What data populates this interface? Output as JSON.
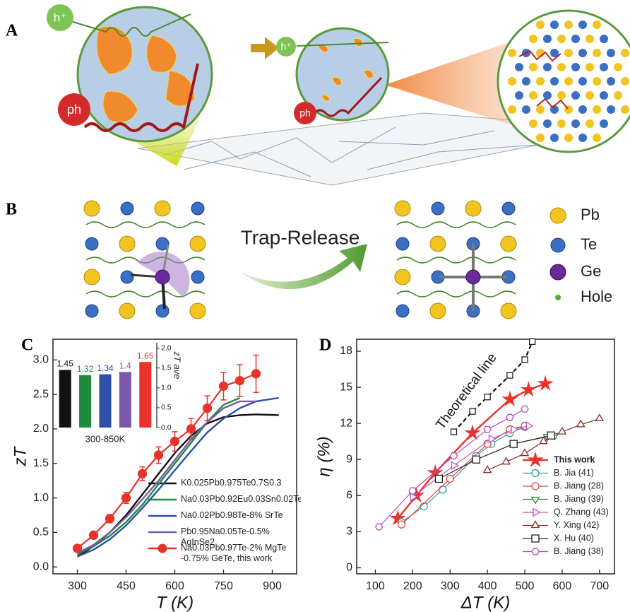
{
  "panels": {
    "a": "A",
    "b": "B",
    "c": "C",
    "d": "D"
  },
  "panel_a": {
    "hole_big": "h⁺",
    "phonon_big": "ph",
    "hole_small": "h⁺",
    "phonon_small": "ph"
  },
  "panel_b": {
    "arrow_label": "Trap-Release",
    "legend": [
      "Pb",
      "Te",
      "Ge",
      "Hole"
    ]
  },
  "chart_data": [
    {
      "type": "line",
      "xlabel": "T (K)",
      "ylabel": "zT",
      "xlim": [
        225,
        975
      ],
      "ylim": [
        -0.1,
        3.3
      ],
      "xticks": [
        300,
        450,
        600,
        750,
        900
      ],
      "yticks": [
        {
          "value": 0,
          "label": "0.0"
        },
        {
          "value": 0.5,
          "label": "0.5"
        },
        {
          "value": 1,
          "label": "1.0"
        },
        {
          "value": 1.5,
          "label": "1.5"
        },
        {
          "value": 2,
          "label": "2.0"
        },
        {
          "value": 2.5,
          "label": "2.5"
        },
        {
          "value": 3,
          "label": "3.0"
        }
      ],
      "series": [
        {
          "name": "K0.025Pb0.975Te0.7S0.3",
          "color": "#111111",
          "x": [
            300,
            350,
            400,
            450,
            500,
            550,
            600,
            650,
            700,
            750,
            800,
            850,
            920
          ],
          "values": [
            0.15,
            0.3,
            0.5,
            0.75,
            1.05,
            1.35,
            1.65,
            1.9,
            2.08,
            2.17,
            2.2,
            2.21,
            2.2
          ]
        },
        {
          "name": "Na0.03Pb0.92Eu0.03Sn0.02Te",
          "color": "#1e8a3c",
          "x": [
            300,
            350,
            400,
            450,
            500,
            550,
            600,
            650,
            700,
            750,
            800
          ],
          "values": [
            0.18,
            0.3,
            0.45,
            0.65,
            0.9,
            1.2,
            1.5,
            1.8,
            2.1,
            2.35,
            2.45
          ]
        },
        {
          "name": "Na0.02Pb0.98Te-8% SrTe",
          "color": "#2f4fa8",
          "x": [
            300,
            350,
            400,
            450,
            500,
            550,
            600,
            650,
            700,
            750,
            800,
            850,
            920
          ],
          "values": [
            0.15,
            0.25,
            0.4,
            0.6,
            0.85,
            1.12,
            1.4,
            1.68,
            1.95,
            2.15,
            2.3,
            2.4,
            2.45
          ]
        },
        {
          "name": "Pb0.95Na0.05Te-0.5% AgInSe2",
          "color": "#7a5aa8",
          "x": [
            300,
            350,
            400,
            450,
            500,
            550,
            600,
            650,
            700,
            750,
            800,
            850
          ],
          "values": [
            0.2,
            0.32,
            0.5,
            0.72,
            0.98,
            1.25,
            1.55,
            1.85,
            2.1,
            2.3,
            2.4,
            2.4
          ]
        },
        {
          "name": "Na0.03Pb0.97Te-2% MgTe -0.75% GeTe, this work",
          "color": "#e8322c",
          "marker": "circle",
          "x": [
            300,
            350,
            400,
            450,
            500,
            550,
            600,
            650,
            700,
            750,
            800,
            850
          ],
          "values": [
            0.27,
            0.46,
            0.7,
            1.0,
            1.35,
            1.62,
            1.82,
            2.0,
            2.3,
            2.62,
            2.7,
            2.8
          ],
          "errors": [
            0.04,
            0.05,
            0.06,
            0.08,
            0.1,
            0.12,
            0.14,
            0.15,
            0.18,
            0.2,
            0.23,
            0.27
          ]
        }
      ]
    },
    {
      "type": "bar",
      "ylabel": "zT ave",
      "note": "300-850K",
      "ylim": [
        0,
        2.1
      ],
      "yticks": [
        {
          "value": 0,
          "label": "0.0"
        },
        {
          "value": 0.5,
          "label": "0.5"
        },
        {
          "value": 1,
          "label": "1.0"
        },
        {
          "value": 1.5,
          "label": "1.5"
        },
        {
          "value": 2,
          "label": "2.0"
        }
      ],
      "values": [
        1.45,
        1.32,
        1.34,
        1.4,
        1.65
      ],
      "colors": [
        "#111111",
        "#1e8a3c",
        "#2f4fa8",
        "#7a5aa8",
        "#e8322c"
      ]
    },
    {
      "type": "line",
      "xlabel": "ΔT (K)",
      "ylabel": "η (%)",
      "xlim": [
        50,
        740
      ],
      "ylim": [
        -0.5,
        19
      ],
      "xticks": [
        100,
        200,
        300,
        400,
        500,
        600,
        700
      ],
      "yticks": [
        0,
        3,
        6,
        9,
        12,
        15,
        18
      ],
      "theory": {
        "label": "Theoretical line",
        "x": [
          310,
          360,
          400,
          460,
          500,
          520
        ],
        "values": [
          11.3,
          13.0,
          14.2,
          16.0,
          17.3,
          18.8
        ]
      },
      "series": [
        {
          "name": "This work",
          "color": "#e8322c",
          "marker": "star",
          "x": [
            160,
            210,
            260,
            360,
            460,
            510,
            555
          ],
          "values": [
            4.1,
            6.0,
            7.9,
            11.2,
            14.0,
            14.8,
            15.3
          ]
        },
        {
          "name": "B. Jia (41)",
          "color": "#2a9d9a",
          "marker": "circle",
          "x": [
            170,
            230,
            280,
            370,
            410,
            460,
            500
          ],
          "values": [
            3.8,
            5.1,
            6.5,
            9.3,
            10.3,
            11.2,
            11.7
          ]
        },
        {
          "name": "B. Jiang (28)",
          "color": "#e0473c",
          "marker": "circle",
          "x": [
            170,
            300,
            400,
            460,
            500
          ],
          "values": [
            3.6,
            7.4,
            10.3,
            11.5,
            11.8
          ]
        },
        {
          "name": "B. Jiang (39)",
          "color": "#2a8a3a",
          "marker": "triangle-down",
          "x": [
            470,
            560,
            580
          ],
          "values": [
            10.3,
            10.9,
            11.0
          ]
        },
        {
          "name": "Q. Zhang (43)",
          "color": "#c455c4",
          "marker": "triangle-right",
          "x": [
            200,
            310,
            410,
            470,
            510
          ],
          "values": [
            5.9,
            8.5,
            10.7,
            11.5,
            11.8
          ]
        },
        {
          "name": "Y. Xing (42)",
          "color": "#8a2a2a",
          "marker": "triangle",
          "x": [
            400,
            450,
            500,
            550,
            600,
            650,
            700
          ],
          "values": [
            8.1,
            8.8,
            9.5,
            10.5,
            11.3,
            11.9,
            12.4
          ]
        },
        {
          "name": "X. Hu (40)",
          "color": "#222222",
          "marker": "square",
          "x": [
            270,
            370,
            470,
            570
          ],
          "values": [
            7.4,
            9.0,
            10.3,
            11.0
          ]
        },
        {
          "name": "B. Jiang (38)",
          "color": "#b04cc0",
          "marker": "hexagon",
          "x": [
            110,
            200,
            310,
            400,
            460,
            500
          ],
          "values": [
            3.4,
            6.4,
            9.3,
            11.5,
            12.5,
            13.2
          ]
        }
      ]
    }
  ]
}
